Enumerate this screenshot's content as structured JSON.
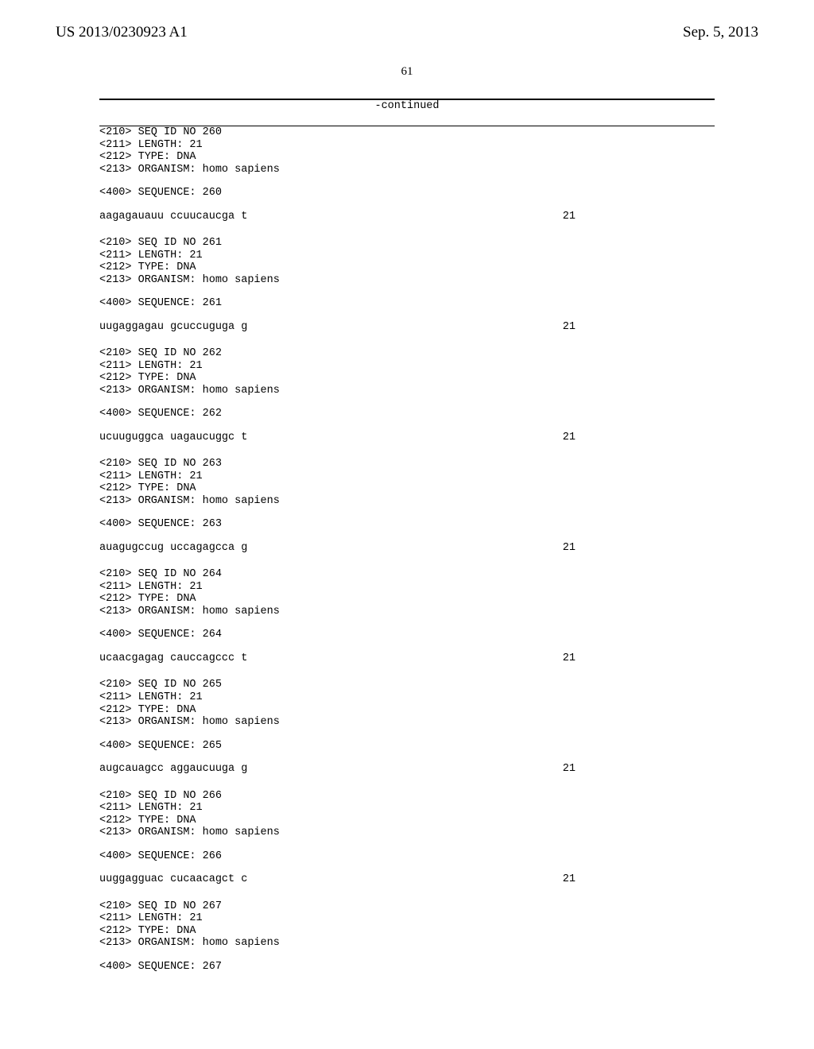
{
  "header": {
    "pub_number": "US 2013/0230923 A1",
    "pub_date": "Sep. 5, 2013"
  },
  "page_number": "61",
  "continued_label": "-continued",
  "sequences": [
    {
      "seq_id": "<210> SEQ ID NO 260",
      "length": "<211> LENGTH: 21",
      "type": "<212> TYPE: DNA",
      "organism": "<213> ORGANISM: homo sapiens",
      "seq_marker": "<400> SEQUENCE: 260",
      "seq_value": "aagagauauu ccuucaucga t",
      "seq_length": "21"
    },
    {
      "seq_id": "<210> SEQ ID NO 261",
      "length": "<211> LENGTH: 21",
      "type": "<212> TYPE: DNA",
      "organism": "<213> ORGANISM: homo sapiens",
      "seq_marker": "<400> SEQUENCE: 261",
      "seq_value": "uugaggagau gcuccuguga g",
      "seq_length": "21"
    },
    {
      "seq_id": "<210> SEQ ID NO 262",
      "length": "<211> LENGTH: 21",
      "type": "<212> TYPE: DNA",
      "organism": "<213> ORGANISM: homo sapiens",
      "seq_marker": "<400> SEQUENCE: 262",
      "seq_value": "ucuuguggca uagaucuggc t",
      "seq_length": "21"
    },
    {
      "seq_id": "<210> SEQ ID NO 263",
      "length": "<211> LENGTH: 21",
      "type": "<212> TYPE: DNA",
      "organism": "<213> ORGANISM: homo sapiens",
      "seq_marker": "<400> SEQUENCE: 263",
      "seq_value": "auagugccug uccagagcca g",
      "seq_length": "21"
    },
    {
      "seq_id": "<210> SEQ ID NO 264",
      "length": "<211> LENGTH: 21",
      "type": "<212> TYPE: DNA",
      "organism": "<213> ORGANISM: homo sapiens",
      "seq_marker": "<400> SEQUENCE: 264",
      "seq_value": "ucaacgagag cauccagccc t",
      "seq_length": "21"
    },
    {
      "seq_id": "<210> SEQ ID NO 265",
      "length": "<211> LENGTH: 21",
      "type": "<212> TYPE: DNA",
      "organism": "<213> ORGANISM: homo sapiens",
      "seq_marker": "<400> SEQUENCE: 265",
      "seq_value": "augcauagcc aggaucuuga g",
      "seq_length": "21"
    },
    {
      "seq_id": "<210> SEQ ID NO 266",
      "length": "<211> LENGTH: 21",
      "type": "<212> TYPE: DNA",
      "organism": "<213> ORGANISM: homo sapiens",
      "seq_marker": "<400> SEQUENCE: 266",
      "seq_value": "uuggagguac cucaacagct c",
      "seq_length": "21"
    },
    {
      "seq_id": "<210> SEQ ID NO 267",
      "length": "<211> LENGTH: 21",
      "type": "<212> TYPE: DNA",
      "organism": "<213> ORGANISM: homo sapiens",
      "seq_marker": "<400> SEQUENCE: 267",
      "seq_value": "",
      "seq_length": ""
    }
  ]
}
